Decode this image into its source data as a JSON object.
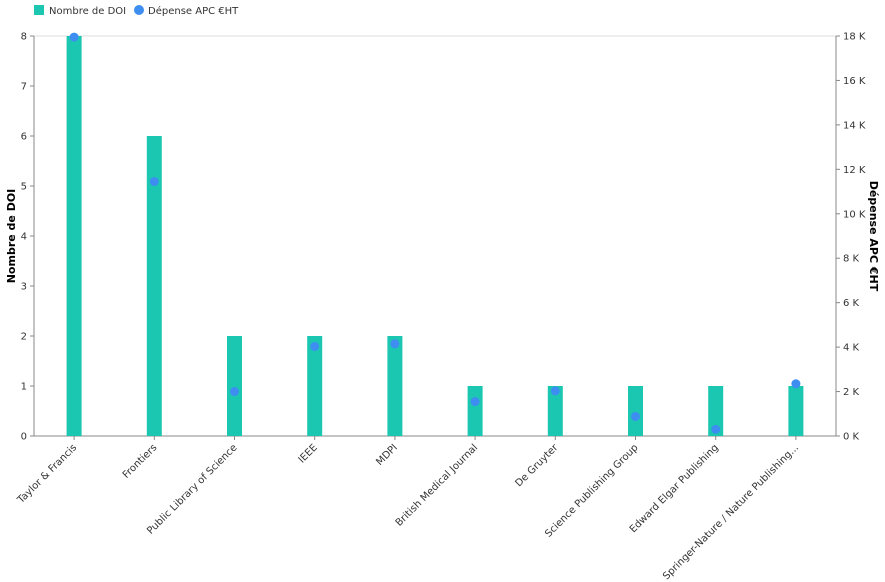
{
  "chart_data": {
    "type": "bar",
    "categories": [
      "Taylor & Francis",
      "Frontiers",
      "Public Library of Science",
      "IEEE",
      "MDPI",
      "British Medical Journal",
      "De Gruyter",
      "Science Publishing Group",
      "Edward Elgar Publishing",
      "Springer-Nature / Nature Publishing..."
    ],
    "series": [
      {
        "name": "Nombre de DOI",
        "kind": "bar",
        "axis": "left",
        "color": "#1cc7b1",
        "values": [
          8,
          6,
          2,
          2,
          2,
          1,
          1,
          1,
          1,
          1
        ]
      },
      {
        "name": "Dépense APC €HT",
        "kind": "scatter",
        "axis": "right",
        "color": "#3d8ef0",
        "values": [
          17950,
          11450,
          2000,
          4030,
          4150,
          1550,
          2030,
          880,
          300,
          2350
        ]
      }
    ],
    "y_left": {
      "label": "Nombre de DOI",
      "ylim": [
        0,
        8
      ],
      "ticks": [
        "0",
        "1",
        "2",
        "3",
        "4",
        "5",
        "6",
        "7",
        "8"
      ]
    },
    "y_right": {
      "label": "Dépense APC €HT",
      "ylim": [
        0,
        18000
      ],
      "ticks": [
        "0 K",
        "2 K",
        "4 K",
        "6 K",
        "8 K",
        "10 K",
        "12 K",
        "14 K",
        "16 K",
        "18 K"
      ]
    },
    "legend": {
      "position": "top-left"
    },
    "grid": false
  }
}
